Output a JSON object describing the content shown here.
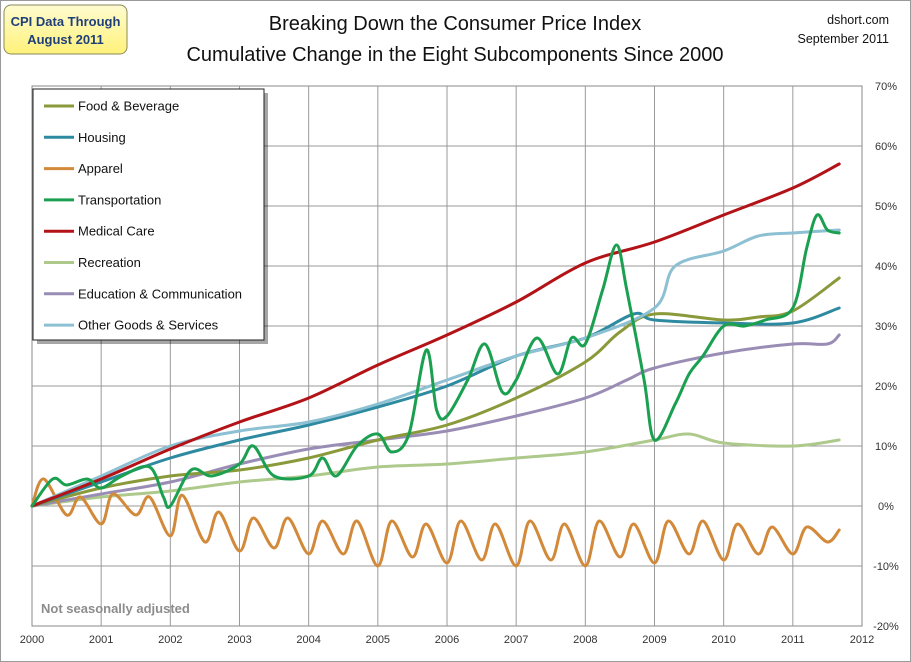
{
  "badge": [
    "CPI Data Through",
    "August 2011"
  ],
  "source": "dshort.com",
  "date_label": "September 2011",
  "note": "Not seasonally adjusted",
  "colors": {
    "Food & Beverage": "#8a9a3b",
    "Housing": "#2e8aa1",
    "Apparel": "#d28a3a",
    "Transportation": "#1aa050",
    "Medical Care": "#b31217",
    "Recreation": "#aec98c",
    "Education & Communication": "#9a8db5",
    "Other Goods & Services": "#8cc0d2"
  },
  "chart_data": {
    "type": "line",
    "title": [
      "Breaking Down the Consumer Price Index",
      "Cumulative Change in the Eight Subcomponents Since 2000"
    ],
    "xlabel": "",
    "ylabel": "",
    "x_ticks": [
      "2000",
      "2001",
      "2002",
      "2003",
      "2004",
      "2005",
      "2006",
      "2007",
      "2008",
      "2009",
      "2010",
      "2011",
      "2012"
    ],
    "y_ticks": [
      "70%",
      "60%",
      "50%",
      "40%",
      "30%",
      "20%",
      "10%",
      "0%",
      "-10%",
      "-20%"
    ],
    "xlim": [
      2000,
      2012
    ],
    "ylim": [
      -20,
      70
    ],
    "grid": true,
    "legend_position": "top-left",
    "series": [
      {
        "name": "Food & Beverage",
        "points": [
          [
            2000,
            0
          ],
          [
            2001,
            3
          ],
          [
            2002,
            5
          ],
          [
            2003,
            6
          ],
          [
            2004,
            8
          ],
          [
            2005,
            11
          ],
          [
            2006,
            13.5
          ],
          [
            2007,
            18
          ],
          [
            2008,
            24
          ],
          [
            2008.5,
            29
          ],
          [
            2009,
            32
          ],
          [
            2010,
            31
          ],
          [
            2010.5,
            31.5
          ],
          [
            2011,
            32.5
          ],
          [
            2011.67,
            38
          ]
        ]
      },
      {
        "name": "Housing",
        "points": [
          [
            2000,
            0
          ],
          [
            2001,
            4
          ],
          [
            2002,
            8
          ],
          [
            2003,
            11
          ],
          [
            2004,
            13.5
          ],
          [
            2005,
            16.5
          ],
          [
            2006,
            20
          ],
          [
            2007,
            25
          ],
          [
            2008,
            28
          ],
          [
            2008.7,
            32
          ],
          [
            2009,
            31
          ],
          [
            2010,
            30.5
          ],
          [
            2011,
            30.5
          ],
          [
            2011.67,
            33
          ]
        ]
      },
      {
        "name": "Apparel",
        "points": [
          [
            2000,
            0
          ],
          [
            2000.17,
            4.5
          ],
          [
            2000.5,
            -1.5
          ],
          [
            2000.7,
            1.5
          ],
          [
            2001,
            -3
          ],
          [
            2001.17,
            2
          ],
          [
            2001.5,
            -1.5
          ],
          [
            2001.7,
            1.5
          ],
          [
            2002,
            -5
          ],
          [
            2002.17,
            1.8
          ],
          [
            2002.5,
            -6
          ],
          [
            2002.7,
            -1
          ],
          [
            2003,
            -7.5
          ],
          [
            2003.2,
            -2
          ],
          [
            2003.5,
            -7
          ],
          [
            2003.7,
            -2
          ],
          [
            2004,
            -8
          ],
          [
            2004.2,
            -2.5
          ],
          [
            2004.5,
            -8
          ],
          [
            2004.7,
            -2.5
          ],
          [
            2005,
            -10
          ],
          [
            2005.2,
            -2.5
          ],
          [
            2005.5,
            -8.5
          ],
          [
            2005.7,
            -3
          ],
          [
            2006,
            -9.5
          ],
          [
            2006.2,
            -2.5
          ],
          [
            2006.5,
            -9
          ],
          [
            2006.7,
            -3
          ],
          [
            2007,
            -10
          ],
          [
            2007.2,
            -2.5
          ],
          [
            2007.5,
            -9
          ],
          [
            2007.7,
            -3
          ],
          [
            2008,
            -10
          ],
          [
            2008.2,
            -2.5
          ],
          [
            2008.5,
            -8.5
          ],
          [
            2008.7,
            -3
          ],
          [
            2009,
            -9.5
          ],
          [
            2009.2,
            -2.5
          ],
          [
            2009.5,
            -8
          ],
          [
            2009.7,
            -2.5
          ],
          [
            2010,
            -9
          ],
          [
            2010.2,
            -3
          ],
          [
            2010.5,
            -8
          ],
          [
            2010.7,
            -3.5
          ],
          [
            2011,
            -8
          ],
          [
            2011.2,
            -3.5
          ],
          [
            2011.5,
            -6
          ],
          [
            2011.67,
            -4
          ]
        ]
      },
      {
        "name": "Transportation",
        "points": [
          [
            2000,
            0
          ],
          [
            2000.3,
            4.5
          ],
          [
            2000.5,
            3.5
          ],
          [
            2000.8,
            4.5
          ],
          [
            2001,
            3
          ],
          [
            2001.3,
            5
          ],
          [
            2001.7,
            6.5
          ],
          [
            2001.9,
            1.5
          ],
          [
            2002,
            0
          ],
          [
            2002.3,
            6
          ],
          [
            2002.6,
            5
          ],
          [
            2003,
            7
          ],
          [
            2003.2,
            10
          ],
          [
            2003.5,
            5
          ],
          [
            2004,
            5
          ],
          [
            2004.2,
            8
          ],
          [
            2004.4,
            5
          ],
          [
            2004.7,
            10
          ],
          [
            2005,
            12
          ],
          [
            2005.2,
            9
          ],
          [
            2005.45,
            12
          ],
          [
            2005.7,
            26
          ],
          [
            2005.85,
            16
          ],
          [
            2006,
            15
          ],
          [
            2006.3,
            21
          ],
          [
            2006.55,
            27
          ],
          [
            2006.8,
            19
          ],
          [
            2007,
            21
          ],
          [
            2007.3,
            28
          ],
          [
            2007.6,
            22
          ],
          [
            2007.8,
            28
          ],
          [
            2008,
            27
          ],
          [
            2008.25,
            36
          ],
          [
            2008.45,
            43.5
          ],
          [
            2008.6,
            36
          ],
          [
            2008.85,
            21
          ],
          [
            2009,
            11
          ],
          [
            2009.3,
            17
          ],
          [
            2009.5,
            22
          ],
          [
            2009.7,
            25
          ],
          [
            2010,
            30
          ],
          [
            2010.3,
            30
          ],
          [
            2010.6,
            31
          ],
          [
            2011,
            33
          ],
          [
            2011.2,
            43
          ],
          [
            2011.35,
            48.5
          ],
          [
            2011.5,
            46
          ],
          [
            2011.67,
            45.5
          ]
        ]
      },
      {
        "name": "Medical Care",
        "points": [
          [
            2000,
            0
          ],
          [
            2001,
            4.5
          ],
          [
            2002,
            9.5
          ],
          [
            2003,
            14
          ],
          [
            2004,
            18
          ],
          [
            2005,
            23.5
          ],
          [
            2006,
            28.5
          ],
          [
            2007,
            34
          ],
          [
            2008,
            40.5
          ],
          [
            2009,
            44
          ],
          [
            2010,
            48.5
          ],
          [
            2011,
            53
          ],
          [
            2011.67,
            57
          ]
        ]
      },
      {
        "name": "Recreation",
        "points": [
          [
            2000,
            0
          ],
          [
            2001,
            1.5
          ],
          [
            2002,
            2.5
          ],
          [
            2003,
            4
          ],
          [
            2004,
            5
          ],
          [
            2005,
            6.5
          ],
          [
            2006,
            7
          ],
          [
            2007,
            8
          ],
          [
            2008,
            9
          ],
          [
            2009,
            11
          ],
          [
            2009.5,
            12
          ],
          [
            2010,
            10.5
          ],
          [
            2011,
            10
          ],
          [
            2011.67,
            11
          ]
        ]
      },
      {
        "name": "Education & Communication",
        "points": [
          [
            2000,
            0
          ],
          [
            2001,
            2
          ],
          [
            2002,
            4
          ],
          [
            2003,
            7
          ],
          [
            2004,
            9.5
          ],
          [
            2005,
            11
          ],
          [
            2006,
            12.5
          ],
          [
            2007,
            15
          ],
          [
            2008,
            18
          ],
          [
            2008.6,
            21
          ],
          [
            2009,
            23
          ],
          [
            2010,
            25.5
          ],
          [
            2011,
            27
          ],
          [
            2011.5,
            27
          ],
          [
            2011.67,
            28.5
          ]
        ]
      },
      {
        "name": "Other Goods & Services",
        "points": [
          [
            2000,
            0
          ],
          [
            2001,
            5
          ],
          [
            2002,
            10
          ],
          [
            2003,
            12.5
          ],
          [
            2004,
            14
          ],
          [
            2005,
            17
          ],
          [
            2006,
            21
          ],
          [
            2007,
            25
          ],
          [
            2008,
            28
          ],
          [
            2009,
            33
          ],
          [
            2009.3,
            40
          ],
          [
            2010,
            42.5
          ],
          [
            2010.5,
            45
          ],
          [
            2011,
            45.5
          ],
          [
            2011.67,
            46
          ]
        ]
      }
    ]
  }
}
